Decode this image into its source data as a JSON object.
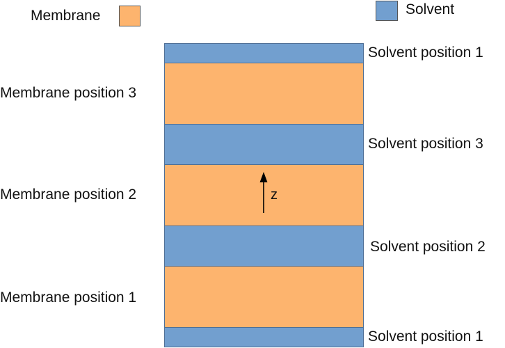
{
  "legend": {
    "membrane": {
      "label": "Membrane",
      "color": "#fdb46e"
    },
    "solvent": {
      "label": "Solvent",
      "color": "#729fcf"
    }
  },
  "layers": [
    {
      "kind": "solvent",
      "label": "Solvent position 1"
    },
    {
      "kind": "membrane",
      "label": "Membrane position 3"
    },
    {
      "kind": "solvent",
      "label": "Solvent position 3"
    },
    {
      "kind": "membrane",
      "label": "Membrane position 2"
    },
    {
      "kind": "solvent",
      "label": "Solvent position 2"
    },
    {
      "kind": "membrane",
      "label": "Membrane position 1"
    },
    {
      "kind": "solvent",
      "label": "Solvent position 1"
    }
  ],
  "axis": {
    "label": "z"
  }
}
